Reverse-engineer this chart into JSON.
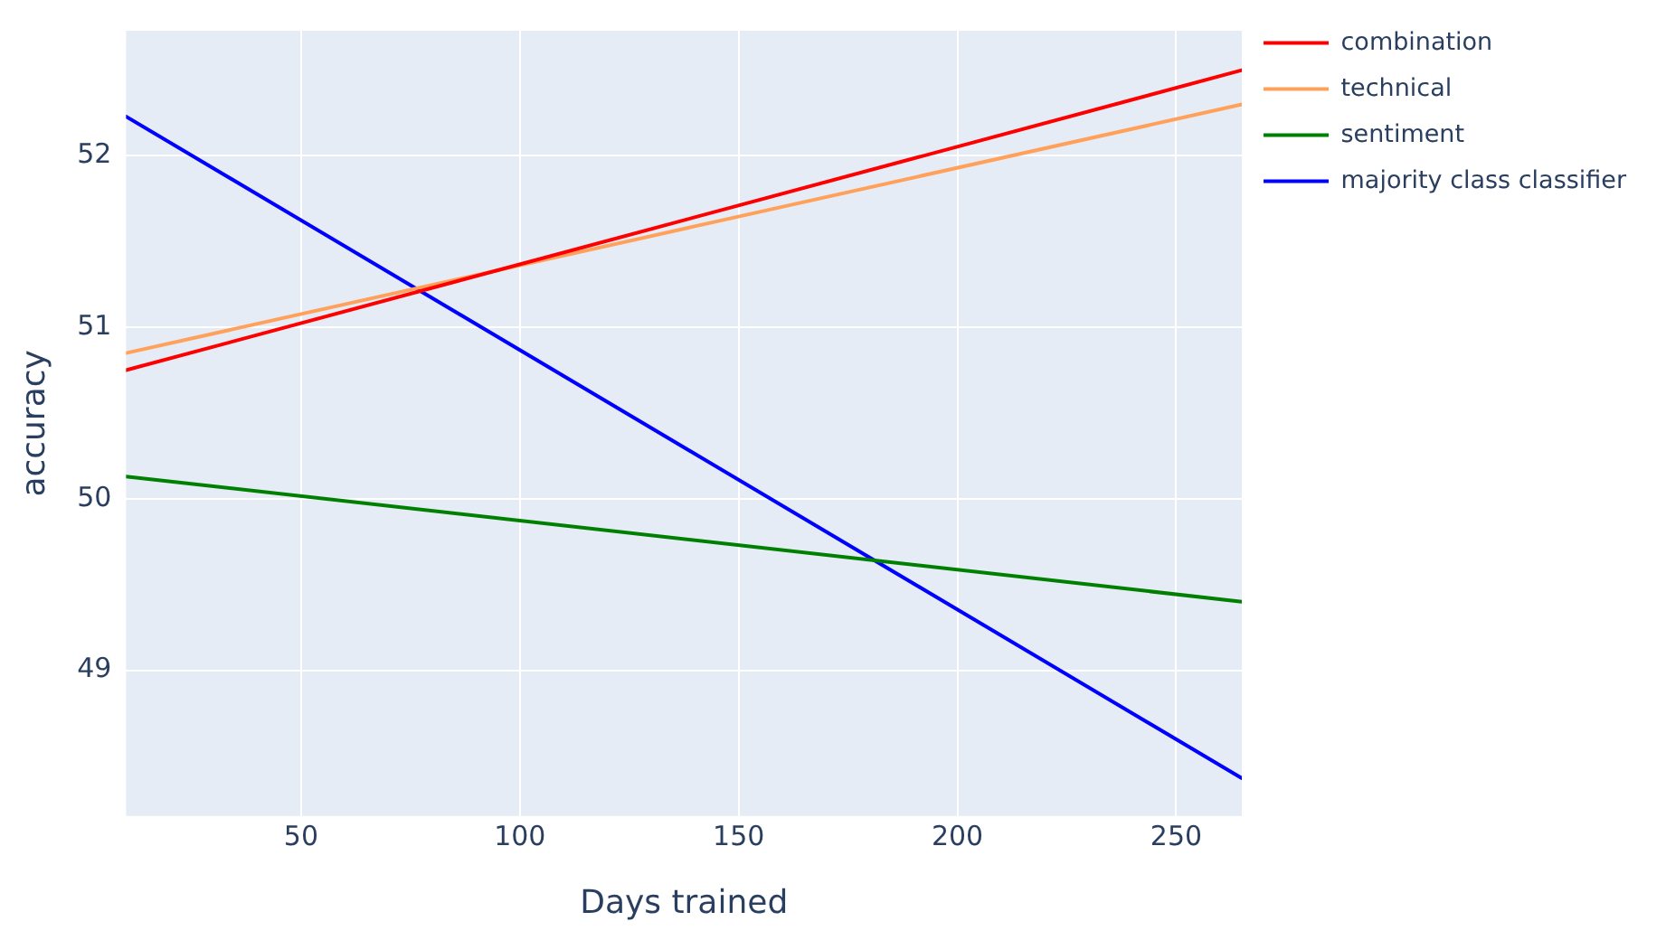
{
  "chart_data": {
    "type": "line",
    "xlabel": "Days trained",
    "ylabel": "accuracy",
    "x": [
      10,
      265
    ],
    "series": [
      {
        "name": "combination",
        "color": "#ff0000",
        "values": [
          50.75,
          52.5
        ]
      },
      {
        "name": "technical",
        "color": "#ffa15a",
        "values": [
          50.85,
          52.3
        ]
      },
      {
        "name": "sentiment",
        "color": "#008000",
        "values": [
          50.13,
          49.4
        ]
      },
      {
        "name": "majority class classifier",
        "color": "#0000ff",
        "values": [
          52.23,
          48.37
        ]
      }
    ],
    "xlim": [
      10,
      265
    ],
    "xticks": [
      50,
      100,
      150,
      200,
      250
    ],
    "ylim": [
      48.15,
      52.73
    ],
    "yticks": [
      49,
      50,
      51,
      52
    ],
    "grid": true,
    "legend": "top right",
    "marker": "none",
    "line_style": "solid"
  }
}
